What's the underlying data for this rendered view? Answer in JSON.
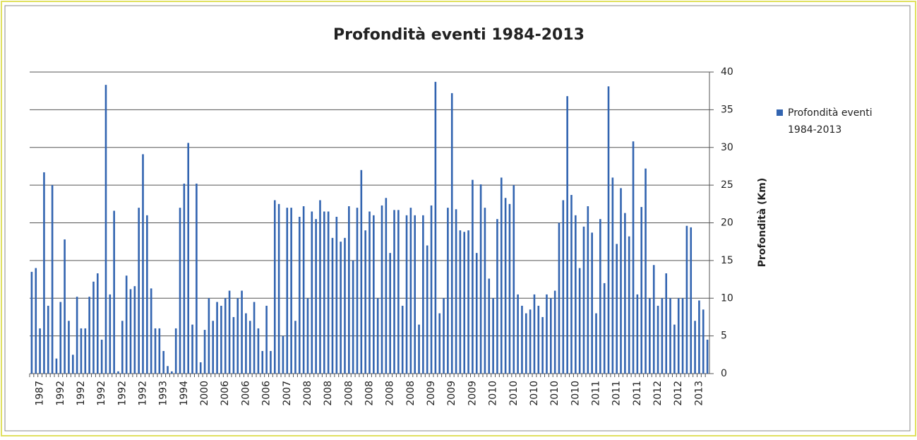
{
  "chart_data": {
    "type": "bar",
    "title": "Profondità eventi 1984-2013",
    "y_axis_label": "Profondità (Km)",
    "categories": [
      null,
      null,
      "1987",
      null,
      null,
      null,
      null,
      "1992",
      null,
      null,
      null,
      null,
      "1992",
      null,
      null,
      null,
      null,
      "1992",
      null,
      null,
      null,
      null,
      "1992",
      null,
      null,
      null,
      null,
      "1992",
      null,
      null,
      null,
      null,
      "1993",
      null,
      null,
      null,
      null,
      "1994",
      null,
      null,
      null,
      null,
      "2000",
      null,
      null,
      null,
      null,
      "2006",
      null,
      null,
      null,
      null,
      "2006",
      null,
      null,
      null,
      null,
      "2006",
      null,
      null,
      null,
      null,
      "2007",
      null,
      null,
      null,
      null,
      "2008",
      null,
      null,
      null,
      null,
      "2008",
      null,
      null,
      null,
      null,
      "2008",
      null,
      null,
      null,
      null,
      "2008",
      null,
      null,
      null,
      null,
      "2008",
      null,
      null,
      null,
      null,
      "2008",
      null,
      null,
      null,
      null,
      "2009",
      null,
      null,
      null,
      null,
      "2009",
      null,
      null,
      null,
      null,
      "2009",
      null,
      null,
      null,
      null,
      "2010",
      null,
      null,
      null,
      null,
      "2010",
      null,
      null,
      null,
      null,
      "2010",
      null,
      null,
      null,
      null,
      "2010",
      null,
      null,
      null,
      null,
      "2010",
      null,
      null,
      null,
      null,
      "2011",
      null,
      null,
      null,
      null,
      "2011",
      null,
      null,
      null,
      null,
      "2011",
      null,
      null,
      null,
      null,
      "2012",
      null,
      null,
      null,
      null,
      "2012",
      null,
      null,
      null,
      null,
      "2013",
      null,
      null
    ],
    "series": [
      {
        "name": "Profondità eventi 1984-2013",
        "color": "#3264b0",
        "values": [
          13.5,
          14,
          6,
          26.7,
          9,
          25,
          2,
          9.5,
          17.8,
          7,
          2.5,
          10.2,
          6,
          6,
          10.2,
          12.2,
          13.3,
          4.5,
          38.3,
          10.5,
          21.6,
          0.3,
          7,
          13,
          11.2,
          11.6,
          22,
          29.1,
          21,
          11.3,
          6,
          6,
          3,
          1,
          0.3,
          6,
          22,
          25.2,
          30.6,
          6.5,
          25.2,
          1.5,
          5.8,
          10,
          7,
          9.5,
          9,
          10,
          11,
          7.5,
          10,
          11,
          8,
          7,
          9.5,
          6,
          3,
          9,
          3,
          23,
          22.5,
          5,
          22,
          22,
          7,
          20.8,
          22.2,
          10,
          21.5,
          20.5,
          23,
          21.5,
          21.5,
          18,
          20.8,
          17.5,
          18,
          22.2,
          15,
          22,
          27,
          19,
          21.5,
          21,
          10,
          22.3,
          23.3,
          16,
          21.7,
          21.7,
          9,
          21,
          22,
          21,
          6.5,
          21,
          17,
          22.3,
          38.7,
          8,
          10,
          22,
          37.2,
          21.8,
          19,
          18.8,
          19,
          25.7,
          16,
          25.1,
          22,
          12.6,
          10,
          20.5,
          26,
          23.3,
          22.5,
          25,
          10.5,
          9,
          8,
          8.5,
          10.5,
          9,
          7.5,
          10.5,
          10,
          11,
          20,
          23,
          36.8,
          23.7,
          21,
          14,
          19.5,
          22.2,
          18.7,
          8,
          20.5,
          12,
          38.1,
          26,
          17.2,
          24.6,
          21.3,
          18.2,
          30.8,
          10.5,
          22.1,
          27.2,
          10,
          14.4,
          9,
          10,
          13.3,
          10,
          6.5,
          10,
          10,
          19.6,
          19.4,
          7,
          9.7,
          8.5,
          4.5
        ]
      }
    ],
    "ylim": [
      0,
      40
    ],
    "yticks": [
      0,
      5,
      10,
      15,
      20,
      25,
      30,
      35,
      40
    ],
    "grid": true,
    "legend": "right"
  }
}
